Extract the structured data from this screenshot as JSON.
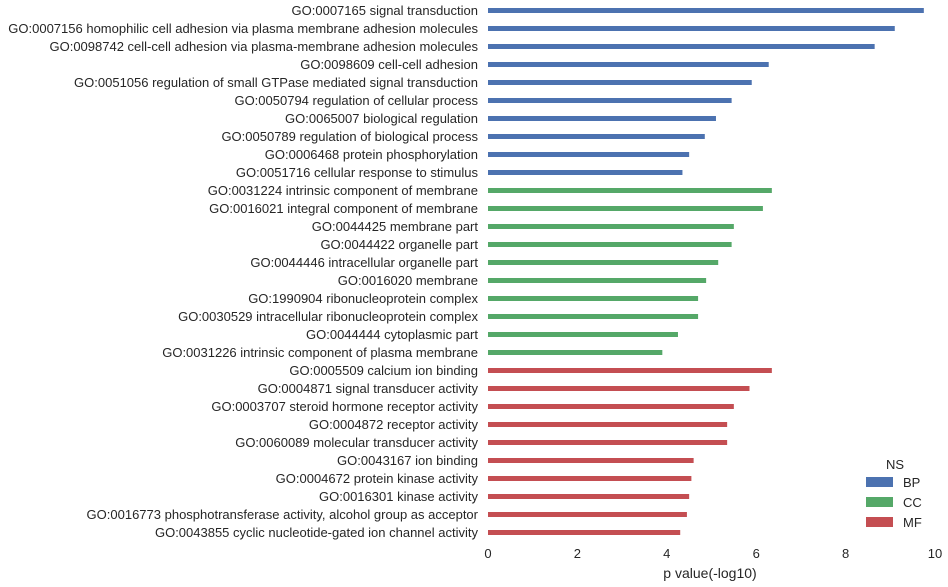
{
  "chart_data": {
    "type": "bar",
    "orientation": "horizontal",
    "xlabel": "p value(-log10)",
    "xlim": [
      0,
      10
    ],
    "xticks": [
      "0",
      "2",
      "4",
      "6",
      "8",
      "10"
    ],
    "grid": false,
    "legend": {
      "title": "NS",
      "placement": "bottom-right"
    },
    "groups": [
      {
        "name": "BP",
        "color": "#4c72b0",
        "categories": [
          "GO:0007165 signal transduction",
          "GO:0007156 homophilic cell adhesion via plasma membrane adhesion molecules",
          "GO:0098742 cell-cell adhesion via plasma-membrane adhesion molecules",
          "GO:0098609 cell-cell adhesion",
          "GO:0051056 regulation of small GTPase mediated signal transduction",
          "GO:0050794 regulation of cellular process",
          "GO:0065007 biological regulation",
          "GO:0050789 regulation of biological process",
          "GO:0006468 protein phosphorylation",
          "GO:0051716 cellular response to stimulus"
        ],
        "values": [
          9.75,
          9.1,
          8.65,
          6.28,
          5.9,
          5.45,
          5.1,
          4.85,
          4.5,
          4.35
        ]
      },
      {
        "name": "CC",
        "color": "#55a868",
        "categories": [
          "GO:0031224 intrinsic component of membrane",
          "GO:0016021 integral component of membrane",
          "GO:0044425 membrane part",
          "GO:0044422 organelle part",
          "GO:0044446 intracellular organelle part",
          "GO:0016020 membrane",
          "GO:1990904 ribonucleoprotein complex",
          "GO:0030529 intracellular ribonucleoprotein complex",
          "GO:0044444 cytoplasmic part",
          "GO:0031226 intrinsic component of plasma membrane"
        ],
        "values": [
          6.35,
          6.15,
          5.5,
          5.45,
          5.15,
          4.88,
          4.7,
          4.7,
          4.25,
          3.9
        ]
      },
      {
        "name": "MF",
        "color": "#c44e52",
        "categories": [
          "GO:0005509 calcium ion binding",
          "GO:0004871 signal transducer activity",
          "GO:0003707 steroid hormone receptor activity",
          "GO:0004872 receptor activity",
          "GO:0060089 molecular transducer activity",
          "GO:0043167 ion binding",
          "GO:0004672 protein kinase activity",
          "GO:0016301 kinase activity",
          "GO:0016773 phosphotransferase activity, alcohol group as acceptor",
          "GO:0043855 cyclic nucleotide-gated ion channel activity"
        ],
        "values": [
          6.35,
          5.85,
          5.5,
          5.35,
          5.35,
          4.6,
          4.55,
          4.5,
          4.45,
          4.3
        ]
      }
    ]
  }
}
